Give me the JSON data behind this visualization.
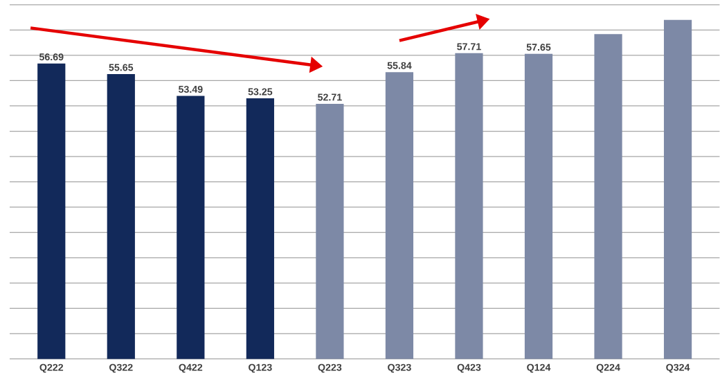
{
  "chart_data": {
    "type": "bar",
    "categories": [
      "Q222",
      "Q322",
      "Q422",
      "Q123",
      "Q223",
      "Q323",
      "Q423",
      "Q124",
      "Q224",
      "Q324"
    ],
    "values": [
      56.69,
      55.65,
      53.49,
      53.25,
      52.71,
      55.84,
      57.71,
      57.65,
      59.6,
      61.0
    ],
    "value_labels": [
      "56.69",
      "55.65",
      "53.49",
      "53.25",
      "52.71",
      "55.84",
      "57.71",
      "57.65",
      null,
      null
    ],
    "colors": [
      "#12295a",
      "#12295a",
      "#12295a",
      "#12295a",
      "#7d89a6",
      "#7d89a6",
      "#7d89a6",
      "#7d89a6",
      "#7d89a6",
      "#7d89a6"
    ],
    "ylim": [
      27.5,
      62.5
    ],
    "yticks": [
      {
        "value": 27.5,
        "label": null
      },
      {
        "value": 30,
        "label": null
      },
      {
        "value": 32.5,
        "label": null
      },
      {
        "value": 35,
        "label": null
      },
      {
        "value": 37.5,
        "label": null
      },
      {
        "value": 40,
        "label": null
      },
      {
        "value": 42.5,
        "label": null
      },
      {
        "value": 45,
        "label": null
      },
      {
        "value": 47.5,
        "label": null
      },
      {
        "value": 50,
        "label": null
      },
      {
        "value": 52.5,
        "label": null
      },
      {
        "value": 55,
        "label": null
      },
      {
        "value": 57.5,
        "label": null
      },
      {
        "value": 60,
        "label": null
      },
      {
        "value": 62.5,
        "label": null
      }
    ],
    "grid": "y",
    "tick_labels": "x"
  }
}
